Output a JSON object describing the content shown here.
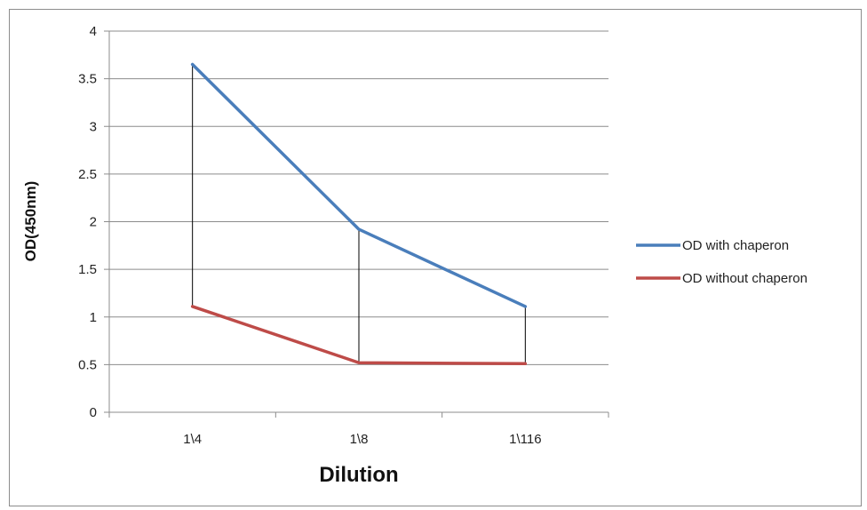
{
  "chart_data": {
    "type": "line",
    "title": "",
    "xlabel": "Dilution",
    "ylabel": "OD(450nm)",
    "categories": [
      "1\\4",
      "1\\8",
      "1\\116"
    ],
    "ylim": [
      0,
      4
    ],
    "yticks": [
      "0",
      "0.5",
      "1",
      "1.5",
      "2",
      "2.5",
      "3",
      "3.5",
      "4"
    ],
    "grid": true,
    "legend_position": "right",
    "drop_lines": true,
    "series": [
      {
        "name": "OD with chaperon",
        "color": "#4a7ebb",
        "values": [
          3.65,
          1.92,
          1.11
        ]
      },
      {
        "name": "OD without chaperon",
        "color": "#be4b48",
        "values": [
          1.11,
          0.52,
          0.51
        ]
      }
    ]
  }
}
